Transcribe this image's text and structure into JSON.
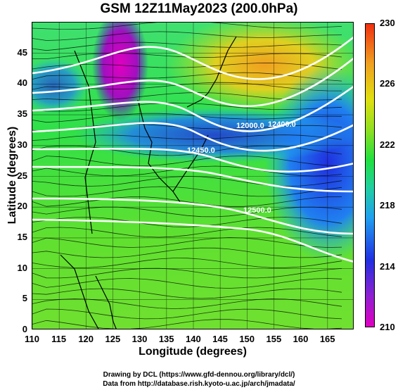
{
  "title": "GSM 12Z11May2023 (200.0hPa)",
  "x_axis": {
    "label": "Longitude (degrees)",
    "ticks": [
      "110",
      "115",
      "120",
      "125",
      "130",
      "135",
      "140",
      "145",
      "150",
      "155",
      "160",
      "165"
    ],
    "values": [
      110,
      115,
      120,
      125,
      130,
      135,
      140,
      145,
      150,
      155,
      160,
      165
    ],
    "range": [
      110,
      170
    ]
  },
  "y_axis": {
    "label": "Latitude  (degrees)",
    "ticks": [
      "0",
      "5",
      "10",
      "15",
      "20",
      "25",
      "30",
      "35",
      "40",
      "45"
    ],
    "values": [
      0,
      5,
      10,
      15,
      20,
      25,
      30,
      35,
      40,
      45
    ],
    "range": [
      0,
      50
    ]
  },
  "colorbar": {
    "labels": [
      "230",
      "226",
      "222",
      "218",
      "214",
      "210"
    ],
    "values": [
      230,
      226,
      222,
      218,
      214,
      210
    ],
    "range": [
      210,
      230
    ]
  },
  "contours": [
    {
      "label": "12000.0"
    },
    {
      "label": "12400.0"
    },
    {
      "label": "12450.0"
    },
    {
      "label": "12500.0"
    }
  ],
  "credits": {
    "line1": "Drawing by DCL (https://www.gfd-dennou.org/library/dcl/)",
    "line2": "Data from http://database.rish.kyoto-u.ac.jp/arch/jmadata/"
  },
  "colors": {
    "background_field": "#30e040",
    "colorbar_high": "#f03010",
    "colorbar_low": "#e000c0"
  }
}
